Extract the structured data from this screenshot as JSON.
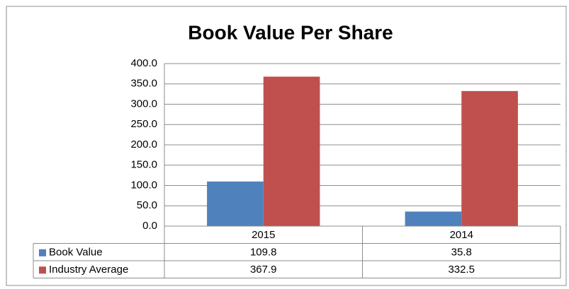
{
  "chart_data": {
    "type": "bar",
    "title": "Book Value Per Share",
    "categories": [
      "2015",
      "2014"
    ],
    "series": [
      {
        "name": "Book Value",
        "color": "#4f81bd",
        "values": [
          109.8,
          35.8
        ]
      },
      {
        "name": "Industry Average",
        "color": "#c0504d",
        "values": [
          367.9,
          332.5
        ]
      }
    ],
    "ylim": [
      0,
      400
    ],
    "yticks": [
      {
        "value": 0,
        "label": "0.0"
      },
      {
        "value": 50,
        "label": "50.0"
      },
      {
        "value": 100,
        "label": "100.0"
      },
      {
        "value": 150,
        "label": "150.0"
      },
      {
        "value": 200,
        "label": "200.0"
      },
      {
        "value": 250,
        "label": "250.0"
      },
      {
        "value": 300,
        "label": "300.0"
      },
      {
        "value": 350,
        "label": "350.0"
      },
      {
        "value": 400,
        "label": "400.0"
      }
    ],
    "grid": true,
    "data_table": true
  }
}
